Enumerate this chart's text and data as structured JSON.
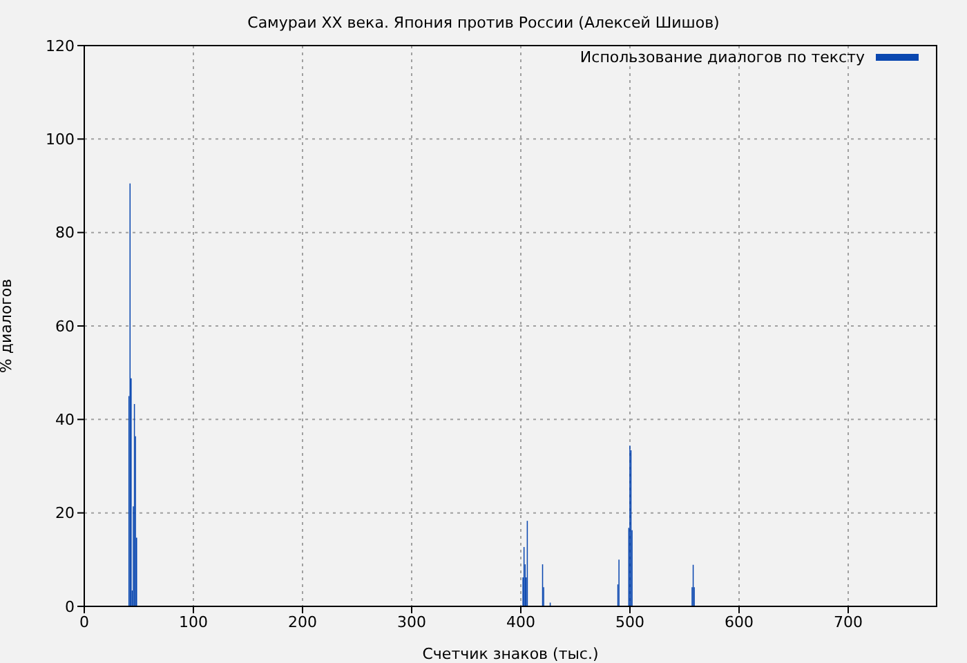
{
  "chart_data": {
    "type": "bar",
    "title": "Самураи XX века. Япония против России (Алексей Шишов)",
    "xlabel": "Счетчик знаков (тыс.)",
    "ylabel": "% диалогов",
    "series": [
      {
        "name": "Использование диалогов по тексту",
        "color": "#0a47b0",
        "x": [
          41,
          42,
          43,
          44,
          45,
          46,
          47,
          48,
          402,
          403,
          404,
          405,
          406,
          420,
          421,
          427,
          489,
          490,
          499,
          500,
          501,
          502,
          557,
          558,
          559
        ],
        "values": [
          45.0,
          90.5,
          48.8,
          3.4,
          21.4,
          43.3,
          36.4,
          14.7,
          6.2,
          12.7,
          9.0,
          6.2,
          18.3,
          9.0,
          4.1,
          0.8,
          4.7,
          10.0,
          16.8,
          34.4,
          33.4,
          16.3,
          4.1,
          8.9,
          4.1
        ]
      }
    ],
    "xlim": [
      0,
      781
    ],
    "xticks": [
      0,
      100,
      200,
      300,
      400,
      500,
      600,
      700
    ],
    "ylim": [
      0,
      120
    ],
    "yticks": [
      0,
      20,
      40,
      60,
      80,
      100,
      120
    ],
    "grid": true,
    "legend": "top right"
  }
}
